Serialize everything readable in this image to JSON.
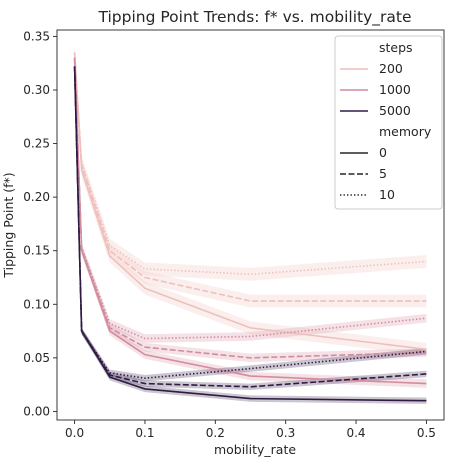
{
  "chart_data": {
    "type": "line",
    "title": "Tipping Point Trends: f* vs. mobility_rate",
    "xlabel": "mobility_rate",
    "ylabel": "Tipping Point (f*)",
    "xlim": [
      -0.025,
      0.525
    ],
    "ylim": [
      -0.008,
      0.356
    ],
    "xticks": [
      0.0,
      0.1,
      0.2,
      0.3,
      0.4,
      0.5
    ],
    "xtick_labels": [
      "0.0",
      "0.1",
      "0.2",
      "0.3",
      "0.4",
      "0.5"
    ],
    "yticks": [
      0.0,
      0.05,
      0.1,
      0.15,
      0.2,
      0.25,
      0.3,
      0.35
    ],
    "ytick_labels": [
      "0.00",
      "0.05",
      "0.10",
      "0.15",
      "0.20",
      "0.25",
      "0.30",
      "0.35"
    ],
    "grid": false,
    "x": [
      0.0,
      0.01,
      0.05,
      0.1,
      0.25,
      0.5
    ],
    "hue_legend": {
      "title": "steps",
      "entries": [
        {
          "label": "200",
          "color": "#eebfbd"
        },
        {
          "label": "1000",
          "color": "#d28c9e"
        },
        {
          "label": "5000",
          "color": "#2f1b44"
        }
      ]
    },
    "style_legend": {
      "title": "memory",
      "entries": [
        {
          "label": "0",
          "dash": "solid"
        },
        {
          "label": "5",
          "dash": "dashed"
        },
        {
          "label": "10",
          "dash": "dotted"
        }
      ]
    },
    "legend_position": "top-right",
    "series": [
      {
        "steps": "200",
        "memory": "0",
        "color": "#eebfbd",
        "dash": "solid",
        "values": [
          0.335,
          0.225,
          0.145,
          0.115,
          0.078,
          0.058
        ],
        "ci": 0.006
      },
      {
        "steps": "200",
        "memory": "5",
        "color": "#eebfbd",
        "dash": "dashed",
        "values": [
          0.335,
          0.23,
          0.15,
          0.125,
          0.103,
          0.103
        ],
        "ci": 0.006
      },
      {
        "steps": "200",
        "memory": "10",
        "color": "#eebfbd",
        "dash": "dotted",
        "values": [
          0.335,
          0.232,
          0.155,
          0.133,
          0.128,
          0.14
        ],
        "ci": 0.006
      },
      {
        "steps": "1000",
        "memory": "0",
        "color": "#d28c9e",
        "dash": "solid",
        "values": [
          0.33,
          0.15,
          0.075,
          0.053,
          0.033,
          0.026
        ],
        "ci": 0.004
      },
      {
        "steps": "1000",
        "memory": "5",
        "color": "#d28c9e",
        "dash": "dashed",
        "values": [
          0.33,
          0.152,
          0.078,
          0.06,
          0.05,
          0.055
        ],
        "ci": 0.004
      },
      {
        "steps": "1000",
        "memory": "10",
        "color": "#d28c9e",
        "dash": "dotted",
        "values": [
          0.33,
          0.153,
          0.082,
          0.068,
          0.07,
          0.087
        ],
        "ci": 0.004
      },
      {
        "steps": "5000",
        "memory": "0",
        "color": "#2f1b44",
        "dash": "solid",
        "values": [
          0.322,
          0.075,
          0.032,
          0.021,
          0.012,
          0.01
        ],
        "ci": 0.003
      },
      {
        "steps": "5000",
        "memory": "5",
        "color": "#2f1b44",
        "dash": "dashed",
        "values": [
          0.322,
          0.075,
          0.034,
          0.026,
          0.023,
          0.035
        ],
        "ci": 0.003
      },
      {
        "steps": "5000",
        "memory": "10",
        "color": "#2f1b44",
        "dash": "dotted",
        "values": [
          0.322,
          0.075,
          0.036,
          0.031,
          0.04,
          0.056
        ],
        "ci": 0.003
      }
    ]
  }
}
